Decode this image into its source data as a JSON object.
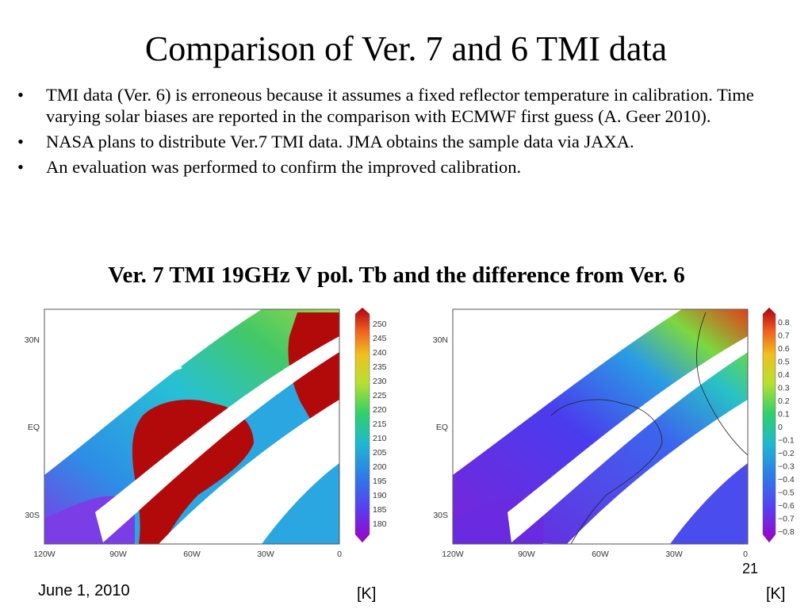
{
  "slide": {
    "title": "Comparison of Ver. 7 and 6 TMI data",
    "bullets": [
      "TMI data (Ver. 6) is erroneous because it assumes a fixed reflector temperature in calibration. Time varying solar biases are reported in the comparison with ECMWF first guess (A. Geer 2010).",
      "NASA plans to distribute Ver.7 TMI data. JMA obtains the sample data via JAXA.",
      "An evaluation was performed to confirm the improved calibration."
    ],
    "bullet_glyph": "•",
    "subtitle": "Ver. 7 TMI 19GHz V pol. Tb and the difference from Ver. 6",
    "date": "June 1, 2010",
    "page_number": "21"
  },
  "maps": {
    "left": {
      "x_ticks": [
        "120W",
        "90W",
        "60W",
        "30W",
        "0"
      ],
      "y_ticks": [
        "30N",
        "EQ",
        "30S"
      ],
      "colorbar_labels": [
        "250",
        "245",
        "240",
        "235",
        "230",
        "225",
        "220",
        "215",
        "210",
        "205",
        "200",
        "195",
        "190",
        "185",
        "180"
      ],
      "unit": "[K]"
    },
    "right": {
      "x_ticks": [
        "120W",
        "90W",
        "60W",
        "30W",
        "0"
      ],
      "y_ticks": [
        "30N",
        "EQ",
        "30S"
      ],
      "colorbar_labels": [
        "0.8",
        "0.7",
        "0.6",
        "0.5",
        "0.4",
        "0.3",
        "0.2",
        "0.1",
        "0",
        "−0.1",
        "−0.2",
        "−0.3",
        "−0.4",
        "−0.5",
        "−0.6",
        "−0.7",
        "−0.8"
      ],
      "unit": "[K]"
    }
  },
  "colors": {
    "ocean_low": "#2aa6e0",
    "land_hot": "#b20a0a",
    "diff_low": "#5a20d8",
    "diff_high": "#e0301a"
  }
}
